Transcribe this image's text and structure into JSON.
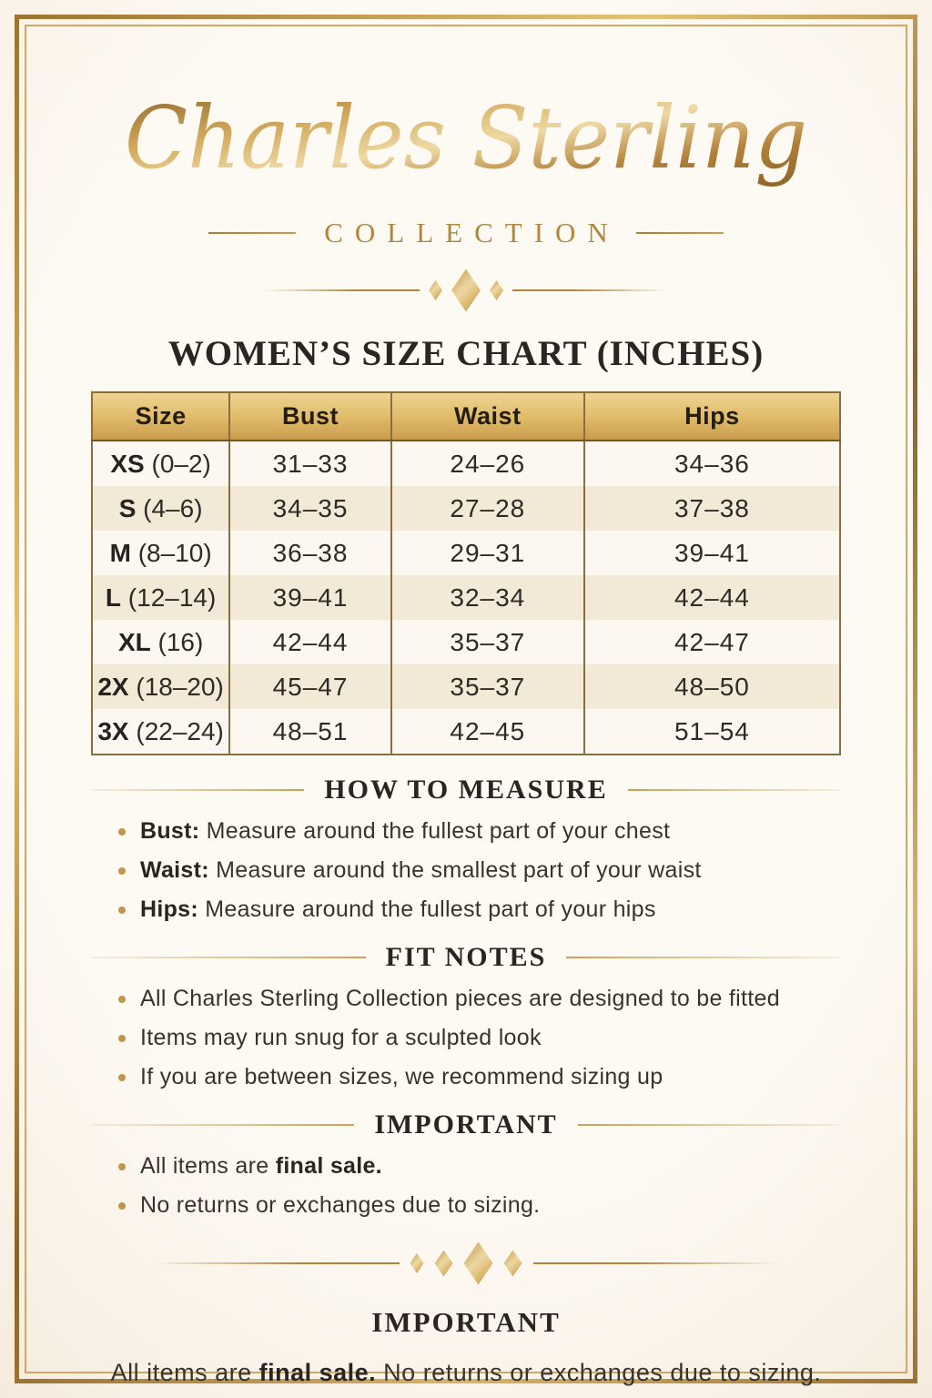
{
  "brand": {
    "name": "Charles Sterling",
    "collection_label": "COLLECTION"
  },
  "title": "WOMEN’S SIZE CHART (INCHES)",
  "table": {
    "columns": [
      "Size",
      "Bust",
      "Waist",
      "Hips"
    ],
    "rows": [
      {
        "size": "XS",
        "size_detail": "(0–2)",
        "bust": "31–33",
        "waist": "24–26",
        "hips": "34–36"
      },
      {
        "size": "S",
        "size_detail": "(4–6)",
        "bust": "34–35",
        "waist": "27–28",
        "hips": "37–38"
      },
      {
        "size": "M",
        "size_detail": "(8–10)",
        "bust": "36–38",
        "waist": "29–31",
        "hips": "39–41"
      },
      {
        "size": "L",
        "size_detail": "(12–14)",
        "bust": "39–41",
        "waist": "32–34",
        "hips": "42–44"
      },
      {
        "size": "XL",
        "size_detail": "(16)",
        "bust": "42–44",
        "waist": "35–37",
        "hips": "42–47"
      },
      {
        "size": "2X",
        "size_detail": "(18–20)",
        "bust": "45–47",
        "waist": "35–37",
        "hips": "48–50"
      },
      {
        "size": "3X",
        "size_detail": "(22–24)",
        "bust": "48–51",
        "waist": "42–45",
        "hips": "51–54"
      }
    ]
  },
  "sections": [
    {
      "id": "how-to-measure",
      "heading": "HOW TO MEASURE",
      "items": [
        [
          {
            "t": "Bust:",
            "b": true
          },
          {
            "t": " Measure around the fullest part of your chest",
            "b": false
          }
        ],
        [
          {
            "t": "Waist:",
            "b": true
          },
          {
            "t": " Measure around the smallest part of your waist",
            "b": false
          }
        ],
        [
          {
            "t": "Hips:",
            "b": true
          },
          {
            "t": " Measure around the fullest part of your hips",
            "b": false
          }
        ]
      ]
    },
    {
      "id": "fit-notes",
      "heading": "FIT NOTES",
      "items": [
        [
          {
            "t": "All Charles Sterling Collection pieces are designed to be fitted",
            "b": false
          }
        ],
        [
          {
            "t": "Items may run snug for a sculpted look",
            "b": false
          }
        ],
        [
          {
            "t": "If you are between sizes, we recommend sizing up",
            "b": false
          }
        ]
      ]
    },
    {
      "id": "important",
      "heading": "IMPORTANT",
      "items": [
        [
          {
            "t": "All items are ",
            "b": false
          },
          {
            "t": "final sale.",
            "b": true
          }
        ],
        [
          {
            "t": "No returns or exchanges due to sizing.",
            "b": false
          }
        ]
      ]
    }
  ],
  "footer": {
    "heading": "IMPORTANT",
    "segments": [
      {
        "t": "All items are ",
        "b": false
      },
      {
        "t": "final sale.",
        "b": true
      },
      {
        "t": " No returns or exchanges due to sizing.",
        "b": false
      }
    ]
  },
  "colors": {
    "gold_accent": "#b2873c",
    "gold_light": "#ecd8a4",
    "gold_dark": "#8a6225",
    "frame_gold": "#b9924a",
    "table_border": "#8b6d42",
    "header_gradient_top": "#eed492",
    "header_gradient_bottom": "#c99c4f",
    "row_cream": "#f3e9d7",
    "row_white": "#fcf8f1",
    "text_dark": "#2b2524",
    "bullet_gold": "#c1964a",
    "background_cream": "#fdf9f3"
  },
  "icons": {
    "diamond": "diamond-icon"
  }
}
